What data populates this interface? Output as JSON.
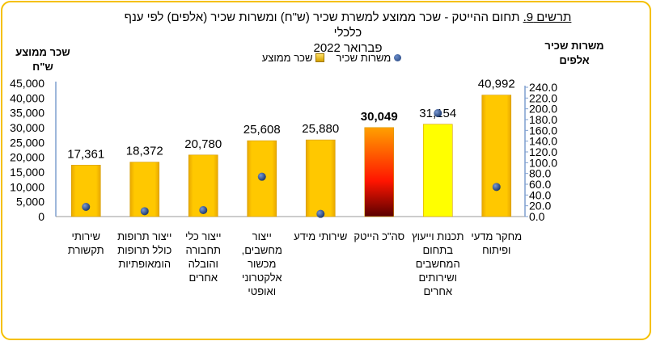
{
  "title": {
    "prefix": "תרשים 9.",
    "text": " תחום ההייטק -  שכר ממוצע למשרת שכיר (ש\"ח) ומשרות שכיר (אלפים) לפי ענף כלכלי",
    "line2": "פברואר 2022"
  },
  "legend": {
    "jobs": "משרות שכיר",
    "wage": "שכר ממוצע"
  },
  "colors": {
    "bar": "#ffc800",
    "total_bar_top": "#ff9900",
    "total_bar_bottom": "#5a0000",
    "software_bar": "#ffff00",
    "dot": "#1f3f7a",
    "frame": "#f5c000",
    "axis": "#7f9fcf"
  },
  "chart_data": {
    "type": "bar",
    "categories": [
      "שירותי תקשורת",
      "ייצור תרופות כולל תרופות הומאופתיות",
      "ייצור כלי תחבורה והובלה אחרים",
      "ייצור מחשבים, מכשור אלקטרוני ואופטי",
      "שירותי מידע",
      "סה\"כ הייטק",
      "תכנות וייעוץ בתחום המחשבים ושירותים אחרים",
      "מחקר מדעי ופיתוח"
    ],
    "category_lines": [
      [
        "שירותי",
        "תקשורת"
      ],
      [
        "ייצור תרופות",
        "כולל תרופות",
        "הומאופתיות"
      ],
      [
        "ייצור כלי",
        "תחבורה",
        "והובלה",
        "אחרים"
      ],
      [
        "ייצור",
        "מחשבים,",
        "מכשור",
        "אלקטרוני",
        "ואופטי"
      ],
      [
        "שירותי מידע"
      ],
      [
        "סה\"כ הייטק"
      ],
      [
        "תכנות וייעוץ",
        "בתחום",
        "המחשבים",
        "ושירותים",
        "אחרים"
      ],
      [
        "מחקר מדעי",
        "ופיתוח"
      ]
    ],
    "series": [
      {
        "name": "שכר ממוצע",
        "type": "bar",
        "axis": "left",
        "values": [
          17361,
          18372,
          20780,
          25608,
          25880,
          30049,
          31154,
          40992
        ],
        "labels": [
          "17,361",
          "18,372",
          "20,780",
          "25,608",
          "25,880",
          "30,049",
          "31,154",
          "40,992"
        ]
      },
      {
        "name": "משרות שכיר",
        "type": "scatter",
        "axis": "right",
        "values": [
          18,
          10,
          12,
          74,
          5,
          null,
          192,
          55
        ]
      }
    ],
    "ylabel_left": [
      "שכר ממוצע",
      "ש\"ח"
    ],
    "ylabel_right": [
      "משרות שכיר",
      "אלפים"
    ],
    "ylim_left": [
      0,
      45000
    ],
    "ylim_right": [
      0,
      240
    ],
    "yticks_left": [
      "0",
      "5,000",
      "10,000",
      "15,000",
      "20,000",
      "25,000",
      "30,000",
      "35,000",
      "40,000",
      "45,000"
    ],
    "yticks_right": [
      "0.0",
      "20.0",
      "40.0",
      "60.0",
      "80.0",
      "100.0",
      "120.0",
      "140.0",
      "160.0",
      "180.0",
      "200.0",
      "220.0",
      "240.0"
    ],
    "grid": false,
    "legend_position": "top"
  }
}
